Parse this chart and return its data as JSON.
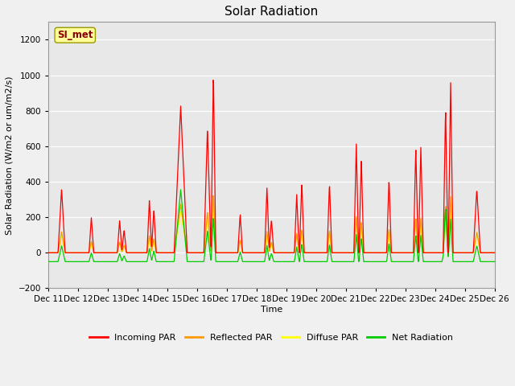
{
  "title": "Solar Radiation",
  "xlabel": "Time",
  "ylabel": "Solar Radiation (W/m2 or um/m2/s)",
  "ylim": [
    -200,
    1300
  ],
  "yticks": [
    -200,
    0,
    200,
    400,
    600,
    800,
    1000,
    1200
  ],
  "background_color": "#e8e8e8",
  "fig_color": "#f0f0f0",
  "grid_color": "white",
  "title_fontsize": 11,
  "label_fontsize": 8,
  "tick_fontsize": 7.5,
  "legend_entries": [
    "Incoming PAR",
    "Reflected PAR",
    "Diffuse PAR",
    "Net Radiation"
  ],
  "colors": {
    "incoming": "#ff0000",
    "reflected": "#ff9900",
    "diffuse": "#ffff00",
    "net": "#00cc00"
  },
  "station_label": "SI_met",
  "station_label_color": "#8B0000",
  "station_box_facecolor": "#ffff99",
  "station_box_edgecolor": "#999900",
  "xtick_labels": [
    "Dec 11",
    "Dec 12",
    "Dec 13",
    "Dec 14",
    "Dec 15",
    "Dec 16",
    "Dec 17",
    "Dec 18",
    "Dec 19",
    "Dec 20",
    "Dec 21",
    "Dec 22",
    "Dec 23",
    "Dec 24",
    "Dec 25",
    "Dec 26"
  ]
}
